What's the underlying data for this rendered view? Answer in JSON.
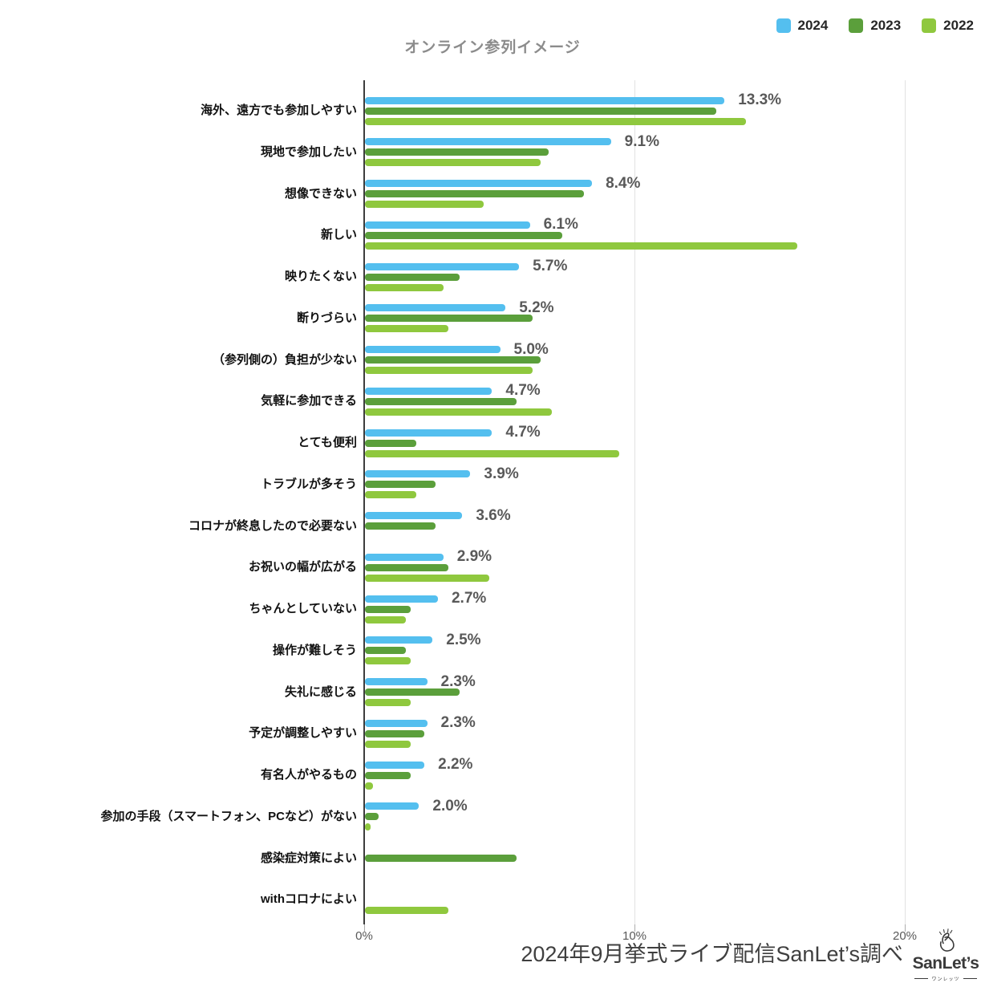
{
  "title": "オンライン参列イメージ",
  "legend": {
    "items": [
      {
        "label": "2024",
        "color": "#54BFEF"
      },
      {
        "label": "2023",
        "color": "#5B9F3B"
      },
      {
        "label": "2022",
        "color": "#8FC83E"
      }
    ]
  },
  "footer": {
    "source_text": "2024年9月挙式ライブ配信SanLet’s調べ",
    "logo_text": "SanLet’s",
    "logo_subtext": "ワンレッツ",
    "logo_icon": "snap-hand-icon"
  },
  "chart_data": {
    "type": "bar",
    "orientation": "horizontal",
    "title": "オンライン参列イメージ",
    "legend_position": "top-right",
    "grid": true,
    "xlim": [
      0,
      20
    ],
    "x_ticks": [
      {
        "value": 0,
        "label": "0%"
      },
      {
        "value": 10,
        "label": "10%"
      },
      {
        "value": 20,
        "label": "20%"
      }
    ],
    "value_label_series": "2024",
    "categories": [
      "海外、遠方でも参加しやすい",
      "現地で参加したい",
      "想像できない",
      "新しい",
      "映りたくない",
      "断りづらい",
      "（参列側の）負担が少ない",
      "気軽に参加できる",
      "とても便利",
      "トラブルが多そう",
      "コロナが終息したので必要ない",
      "お祝いの幅が広がる",
      "ちゃんとしていない",
      "操作が難しそう",
      "失礼に感じる",
      "予定が調整しやすい",
      "有名人がやるもの",
      "参加の手段（スマートフォン、PCなど）がない",
      "感染症対策によい",
      "withコロナによい"
    ],
    "series": [
      {
        "name": "2024",
        "color": "#54BFEF",
        "values": [
          13.3,
          9.1,
          8.4,
          6.1,
          5.7,
          5.2,
          5.0,
          4.7,
          4.7,
          3.9,
          3.6,
          2.9,
          2.7,
          2.5,
          2.3,
          2.3,
          2.2,
          2.0,
          null,
          null
        ]
      },
      {
        "name": "2023",
        "color": "#5B9F3B",
        "values": [
          13.0,
          6.8,
          8.1,
          7.3,
          3.5,
          6.2,
          6.5,
          5.6,
          1.9,
          2.6,
          2.6,
          3.1,
          1.7,
          1.5,
          3.5,
          2.2,
          1.7,
          0.5,
          5.6,
          null
        ]
      },
      {
        "name": "2022",
        "color": "#8FC83E",
        "values": [
          14.1,
          6.5,
          4.4,
          16.0,
          2.9,
          3.1,
          6.2,
          6.9,
          9.4,
          1.9,
          null,
          4.6,
          1.5,
          1.7,
          1.7,
          1.7,
          0.3,
          0.2,
          null,
          3.1
        ]
      }
    ]
  }
}
